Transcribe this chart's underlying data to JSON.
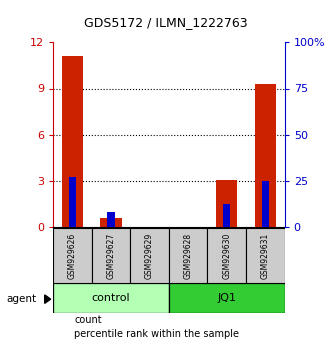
{
  "title": "GDS5172 / ILMN_1222763",
  "samples": [
    "GSM929626",
    "GSM929627",
    "GSM929629",
    "GSM929628",
    "GSM929630",
    "GSM929631"
  ],
  "groups": [
    {
      "label": "control",
      "indices": [
        0,
        1,
        2
      ],
      "color": "#b3ffb3"
    },
    {
      "label": "JQ1",
      "indices": [
        3,
        4,
        5
      ],
      "color": "#33cc33"
    }
  ],
  "red_values": [
    11.1,
    0.55,
    0.0,
    0.0,
    3.05,
    9.3
  ],
  "blue_values_pct": [
    27,
    8,
    0,
    0,
    12,
    25
  ],
  "ylim_left": [
    0,
    12
  ],
  "ylim_right": [
    0,
    100
  ],
  "left_ticks": [
    0,
    3,
    6,
    9,
    12
  ],
  "right_ticks": [
    0,
    25,
    50,
    75,
    100
  ],
  "right_tick_labels": [
    "0",
    "25",
    "50",
    "75",
    "100%"
  ],
  "left_tick_color": "#cc0000",
  "right_tick_color": "#0000cc",
  "bar_width": 0.55,
  "red_color": "#cc2200",
  "blue_color": "#0000cc",
  "bg_color": "#ffffff",
  "label_box_color": "#cccccc",
  "agent_label": "agent",
  "gridline_ticks": [
    3,
    6,
    9
  ]
}
